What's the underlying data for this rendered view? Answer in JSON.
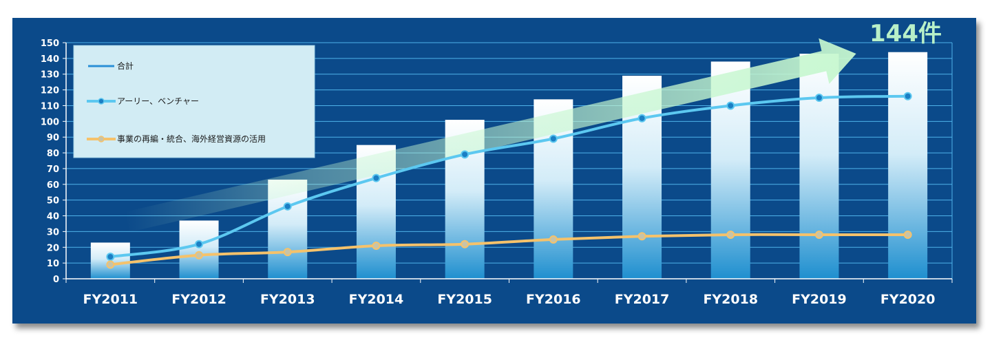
{
  "chart_data": {
    "type": "bar",
    "title": "",
    "xlabel": "",
    "ylabel": "",
    "ylim": [
      0,
      150
    ],
    "ytick_step": 10,
    "categories": [
      "FY2011",
      "FY2012",
      "FY2013",
      "FY2014",
      "FY2015",
      "FY2016",
      "FY2017",
      "FY2018",
      "FY2019",
      "FY2020"
    ],
    "series": [
      {
        "name": "合計",
        "kind": "bar",
        "values": [
          23,
          37,
          63,
          85,
          101,
          114,
          129,
          138,
          143,
          144
        ]
      },
      {
        "name": "アーリー、ベンチャー",
        "kind": "line",
        "values": [
          14,
          22,
          46,
          64,
          79,
          89,
          102,
          110,
          115,
          116
        ]
      },
      {
        "name": "事業の再編・統合、海外経営資源の活用",
        "kind": "line",
        "values": [
          9,
          15,
          17,
          21,
          22,
          25,
          27,
          28,
          28,
          28
        ]
      }
    ],
    "callout": "144件",
    "grid": true,
    "legend_position": "top-left"
  },
  "colors": {
    "background": "#0b4a8a",
    "grid": "#4fb3ea",
    "bar_top": "#ffffff",
    "bar_bottom": "#1f8fcf",
    "line_early": "#5cc8f0",
    "line_early_marker": "#1b7fc4",
    "line_restructure": "#f5c26b",
    "line_restructure_marker": "#c8c4a8",
    "legend_bg": "#d2ecf4",
    "arrow": "#c6f7cf"
  }
}
